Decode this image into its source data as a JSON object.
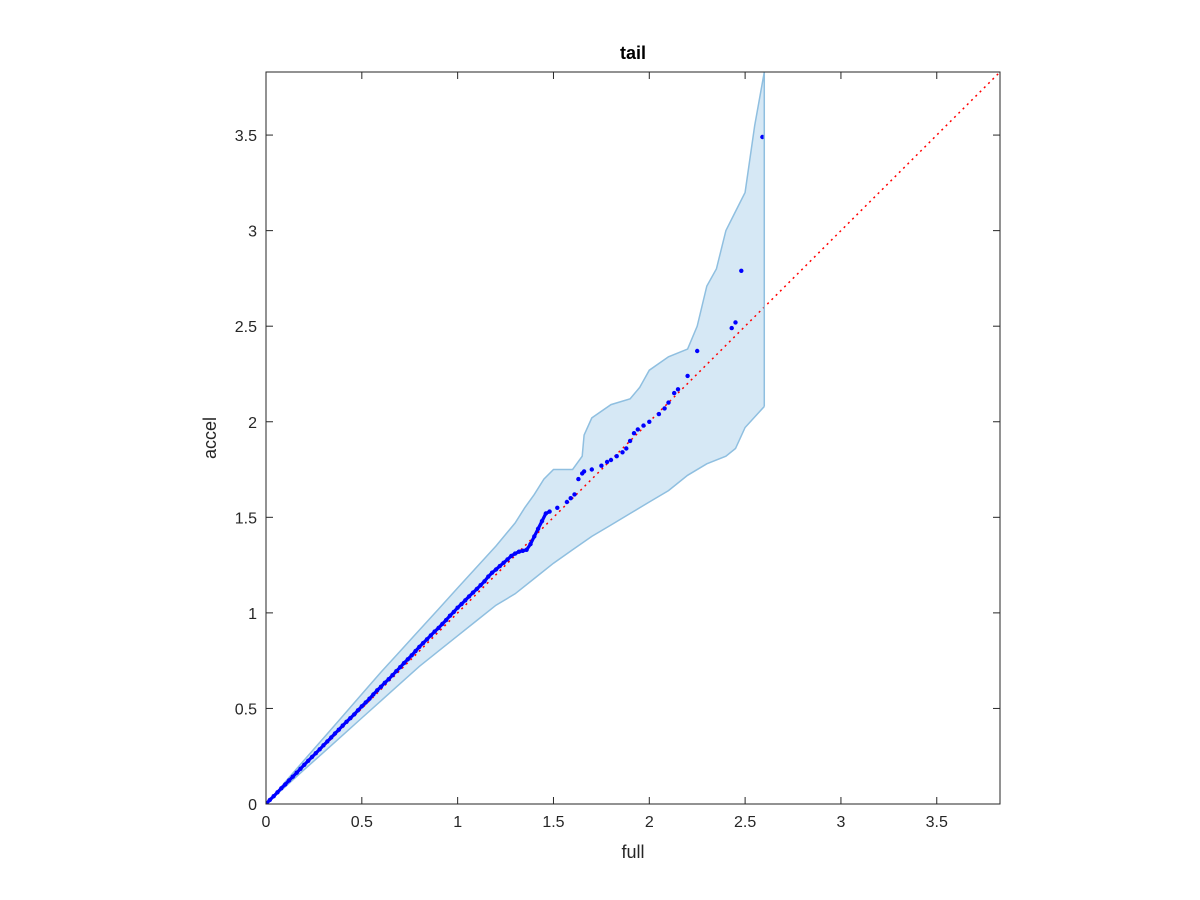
{
  "chart_data": {
    "type": "scatter",
    "title": "tail",
    "xlabel": "full",
    "ylabel": "accel",
    "xlim": [
      0,
      3.83
    ],
    "ylim": [
      0,
      3.83
    ],
    "xticks": [
      "0",
      "0.5",
      "1",
      "1.5",
      "2",
      "2.5",
      "3",
      "3.5"
    ],
    "yticks": [
      "0",
      "0.5",
      "1",
      "1.5",
      "2",
      "2.5",
      "3",
      "3.5"
    ],
    "grid": false,
    "reference_line": {
      "from": [
        0,
        0
      ],
      "to": [
        3.83,
        3.83
      ],
      "style": "dotted",
      "color": "#ff0000"
    },
    "band": {
      "upper": [
        [
          0,
          0
        ],
        [
          0.05,
          0.055
        ],
        [
          0.1,
          0.115
        ],
        [
          0.2,
          0.23
        ],
        [
          0.3,
          0.345
        ],
        [
          0.4,
          0.46
        ],
        [
          0.5,
          0.575
        ],
        [
          0.6,
          0.69
        ],
        [
          0.7,
          0.8
        ],
        [
          0.8,
          0.91
        ],
        [
          0.9,
          1.02
        ],
        [
          1.0,
          1.13
        ],
        [
          1.1,
          1.24
        ],
        [
          1.2,
          1.35
        ],
        [
          1.3,
          1.47
        ],
        [
          1.35,
          1.55
        ],
        [
          1.4,
          1.62
        ],
        [
          1.45,
          1.7
        ],
        [
          1.5,
          1.75
        ],
        [
          1.6,
          1.75
        ],
        [
          1.65,
          1.82
        ],
        [
          1.66,
          1.93
        ],
        [
          1.7,
          2.02
        ],
        [
          1.8,
          2.09
        ],
        [
          1.9,
          2.12
        ],
        [
          1.95,
          2.18
        ],
        [
          2.0,
          2.27
        ],
        [
          2.1,
          2.34
        ],
        [
          2.2,
          2.38
        ],
        [
          2.25,
          2.5
        ],
        [
          2.3,
          2.71
        ],
        [
          2.35,
          2.8
        ],
        [
          2.4,
          3.0
        ],
        [
          2.45,
          3.1
        ],
        [
          2.5,
          3.2
        ],
        [
          2.55,
          3.55
        ],
        [
          2.6,
          3.83
        ]
      ],
      "lower": [
        [
          0,
          0
        ],
        [
          0.1,
          0.09
        ],
        [
          0.2,
          0.18
        ],
        [
          0.3,
          0.27
        ],
        [
          0.4,
          0.36
        ],
        [
          0.5,
          0.45
        ],
        [
          0.6,
          0.54
        ],
        [
          0.7,
          0.63
        ],
        [
          0.8,
          0.72
        ],
        [
          0.9,
          0.8
        ],
        [
          1.0,
          0.88
        ],
        [
          1.1,
          0.96
        ],
        [
          1.2,
          1.04
        ],
        [
          1.3,
          1.1
        ],
        [
          1.4,
          1.18
        ],
        [
          1.5,
          1.26
        ],
        [
          1.6,
          1.33
        ],
        [
          1.7,
          1.4
        ],
        [
          1.8,
          1.46
        ],
        [
          1.9,
          1.52
        ],
        [
          2.0,
          1.58
        ],
        [
          2.1,
          1.64
        ],
        [
          2.2,
          1.72
        ],
        [
          2.3,
          1.78
        ],
        [
          2.4,
          1.82
        ],
        [
          2.45,
          1.86
        ],
        [
          2.5,
          1.97
        ],
        [
          2.6,
          2.08
        ]
      ],
      "color": "#d6e8f5",
      "edge_color": "#8fbfe0"
    },
    "series": [
      {
        "color": "#0000ff",
        "x": [
          0.02,
          0.04,
          0.06,
          0.08,
          0.1,
          0.12,
          0.14,
          0.16,
          0.18,
          0.2,
          0.22,
          0.24,
          0.26,
          0.28,
          0.3,
          0.32,
          0.34,
          0.36,
          0.38,
          0.4,
          0.42,
          0.44,
          0.46,
          0.48,
          0.5,
          0.52,
          0.54,
          0.56,
          0.58,
          0.6,
          0.62,
          0.64,
          0.66,
          0.68,
          0.7,
          0.72,
          0.74,
          0.76,
          0.78,
          0.8,
          0.82,
          0.84,
          0.86,
          0.88,
          0.9,
          0.92,
          0.94,
          0.96,
          0.98,
          1.0,
          1.02,
          1.04,
          1.06,
          1.08,
          1.1,
          1.12,
          1.14,
          1.16,
          1.18,
          1.2,
          1.22,
          1.24,
          1.26,
          1.28,
          1.3,
          1.32,
          1.34,
          1.36,
          1.38,
          1.4,
          1.42,
          1.44,
          1.46,
          1.48,
          1.52,
          1.57,
          1.59,
          1.61,
          1.63,
          1.65,
          1.66,
          1.7,
          1.75,
          1.78,
          1.8,
          1.83,
          1.86,
          1.88,
          1.9,
          1.92,
          1.94,
          1.97,
          2.0,
          2.05,
          2.08,
          2.1,
          2.13,
          2.15,
          2.2,
          2.25,
          2.43,
          2.45,
          2.48,
          2.59
        ],
        "y": [
          0.021,
          0.041,
          0.061,
          0.082,
          0.102,
          0.123,
          0.143,
          0.164,
          0.184,
          0.205,
          0.226,
          0.246,
          0.266,
          0.286,
          0.307,
          0.327,
          0.348,
          0.369,
          0.389,
          0.41,
          0.43,
          0.449,
          0.469,
          0.49,
          0.511,
          0.531,
          0.551,
          0.573,
          0.595,
          0.614,
          0.634,
          0.653,
          0.674,
          0.695,
          0.716,
          0.737,
          0.757,
          0.778,
          0.8,
          0.822,
          0.842,
          0.862,
          0.882,
          0.902,
          0.921,
          0.942,
          0.962,
          0.985,
          1.005,
          1.027,
          1.046,
          1.066,
          1.086,
          1.106,
          1.125,
          1.145,
          1.165,
          1.19,
          1.21,
          1.227,
          1.245,
          1.262,
          1.28,
          1.298,
          1.31,
          1.32,
          1.325,
          1.33,
          1.36,
          1.4,
          1.44,
          1.48,
          1.52,
          1.53,
          1.55,
          1.58,
          1.6,
          1.62,
          1.7,
          1.73,
          1.74,
          1.75,
          1.77,
          1.79,
          1.8,
          1.82,
          1.84,
          1.86,
          1.9,
          1.94,
          1.96,
          1.98,
          2.0,
          2.04,
          2.07,
          2.1,
          2.15,
          2.17,
          2.24,
          2.37,
          2.49,
          2.52,
          2.79,
          3.49
        ]
      }
    ]
  }
}
